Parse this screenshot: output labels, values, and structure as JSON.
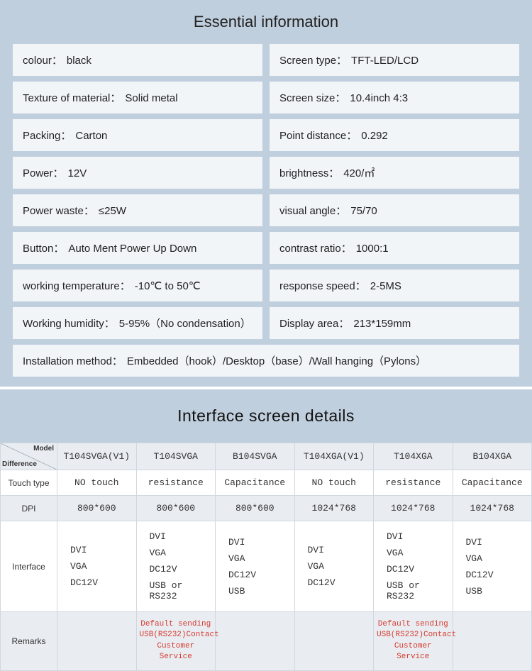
{
  "colors": {
    "section_bg": "#c0cfde",
    "cell_bg": "#f2f5f8",
    "row_alt_bg": "#e9edf2",
    "border": "#d0d7df",
    "remark_text": "#d63a2e",
    "text": "#222222"
  },
  "typography": {
    "title_fontsize": 22,
    "body_fontsize": 15,
    "table_fontsize": 13,
    "table_font_family": "monospace"
  },
  "essential": {
    "title": "Essential information",
    "rows": [
      {
        "label": "colour：",
        "value": "   black"
      },
      {
        "label": "Screen type：",
        "value": "TFT-LED/LCD"
      },
      {
        "label": "Texture of material：",
        "value": "Solid metal"
      },
      {
        "label": "Screen size：",
        "value": "10.4inch 4:3"
      },
      {
        "label": "Packing：",
        "value": "  Carton"
      },
      {
        "label": "Point distance：",
        "value": "  0.292"
      },
      {
        "label": "Power：",
        "value": "  12V"
      },
      {
        "label": "brightness：",
        "value": " 420/㎡"
      },
      {
        "label": "Power waste：",
        "value": "  ≤25W"
      },
      {
        "label": "visual angle：",
        "value": "  75/70"
      },
      {
        "label": "Button：",
        "value": "    Auto Ment Power Up Down"
      },
      {
        "label": "contrast ratio：",
        "value": " 1000:1"
      },
      {
        "label": "working temperature：",
        "value": "-10℃ to 50℃"
      },
      {
        "label": "response speed：",
        "value": "2-5MS"
      },
      {
        "label": "Working humidity：",
        "value": "5-95%（No condensation）"
      },
      {
        "label": "Display area：",
        "value": "213*159mm"
      }
    ],
    "install_label": "Installation method：",
    "install_value": "Embedded（hook）/Desktop（base）/Wall hanging（Pylons）"
  },
  "interface": {
    "title": "Interface screen details",
    "corner_top": "Model",
    "corner_bottom": "Difference",
    "col_headers": [
      "T104SVGA(V1)",
      "T104SVGA",
      "B104SVGA",
      "T104XGA(V1)",
      "T104XGA",
      "B104XGA"
    ],
    "row_headers": [
      "Touch type",
      "DPI",
      "Interface",
      "Remarks"
    ],
    "touch_type": [
      "NO touch",
      "resistance",
      "Capacitance",
      "NO touch",
      "resistance",
      "Capacitance"
    ],
    "dpi": [
      "800*600",
      "800*600",
      "800*600",
      "1024*768",
      "1024*768",
      "1024*768"
    ],
    "interface_lines": [
      [
        "DVI",
        "VGA",
        "DC12V"
      ],
      [
        "DVI",
        "VGA",
        "DC12V",
        "USB or RS232"
      ],
      [
        "DVI",
        "VGA",
        "DC12V",
        "USB"
      ],
      [
        "DVI",
        "VGA",
        "DC12V"
      ],
      [
        "DVI",
        "VGA",
        "DC12V",
        "USB or RS232"
      ],
      [
        "DVI",
        "VGA",
        "DC12V",
        "USB"
      ]
    ],
    "remarks": [
      "",
      "Default sending USB(RS232)Contact Customer Service",
      "",
      "",
      "Default sending USB(RS232)Contact Customer Service",
      ""
    ]
  }
}
